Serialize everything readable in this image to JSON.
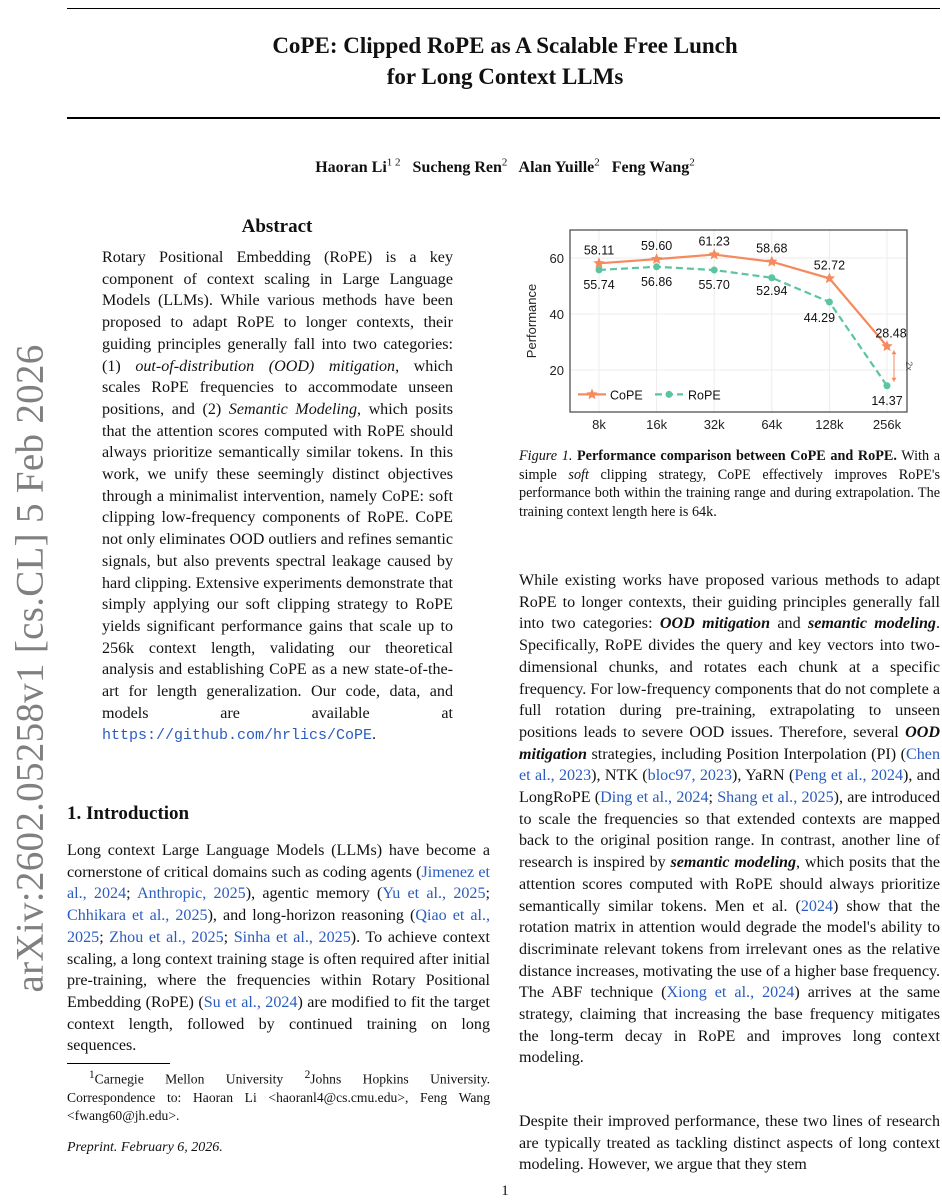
{
  "arxiv_id": "arXiv:2602.05258v1  [cs.CL]  5 Feb 2026",
  "title_line1": "CoPE: Clipped RoPE as A Scalable Free Lunch",
  "title_line2": "for Long Context LLMs",
  "authors": [
    {
      "name": "Haoran Li",
      "aff": "1 2"
    },
    {
      "name": "Sucheng Ren",
      "aff": "2"
    },
    {
      "name": "Alan Yuille",
      "aff": "2"
    },
    {
      "name": "Feng Wang",
      "aff": "2"
    }
  ],
  "abstract_heading": "Abstract",
  "abstract": [
    {
      "t": "Rotary Positional Embedding (RoPE) is a key component of context scaling in Large Language Models (LLMs).  While various methods have been proposed to adapt RoPE to longer contexts, their guiding principles generally fall into two categories: (1) ",
      "s": ""
    },
    {
      "t": "out-of-distribution (OOD) mitigation",
      "s": "em"
    },
    {
      "t": ", which scales RoPE frequencies to accommodate unseen positions, and (2) ",
      "s": ""
    },
    {
      "t": "Semantic Modeling",
      "s": "em"
    },
    {
      "t": ", which posits that the attention scores computed with RoPE should always prioritize semantically similar tokens. In this work, we unify these seemingly distinct objectives through a minimalist intervention, namely CoPE: soft clipping low-frequency components of RoPE. CoPE not only eliminates OOD outliers and refines semantic signals, but also prevents spectral leakage caused by hard clipping. Extensive experiments demonstrate that simply applying our soft clipping strategy to RoPE yields significant performance gains that scale up to 256k context length, validating our theoretical analysis and establishing CoPE as a new state-of-the-art for length generalization. Our code, data, and models are available at ",
      "s": ""
    },
    {
      "t": "https://github.com/hrlics/CoPE",
      "s": "code"
    },
    {
      "t": ".",
      "s": ""
    }
  ],
  "intro_heading": "1. Introduction",
  "intro": [
    {
      "t": "Long context Large Language Models (LLMs) have become a cornerstone of critical domains such as coding agents (",
      "s": ""
    },
    {
      "t": "Jimenez et al., 2024",
      "s": "cite"
    },
    {
      "t": "; ",
      "s": ""
    },
    {
      "t": "Anthropic, 2025",
      "s": "cite"
    },
    {
      "t": "), agentic memory (",
      "s": ""
    },
    {
      "t": "Yu et al., 2025",
      "s": "cite"
    },
    {
      "t": "; ",
      "s": ""
    },
    {
      "t": "Chhikara et al., 2025",
      "s": "cite"
    },
    {
      "t": "), and long-horizon reasoning (",
      "s": ""
    },
    {
      "t": "Qiao et al., 2025",
      "s": "cite"
    },
    {
      "t": "; ",
      "s": ""
    },
    {
      "t": "Zhou et al., 2025",
      "s": "cite"
    },
    {
      "t": "; ",
      "s": ""
    },
    {
      "t": "Sinha et al., 2025",
      "s": "cite"
    },
    {
      "t": "). To achieve context scaling, a long context training stage is often required after initial pre-training, where the frequencies within Rotary Positional Embedding (RoPE) (",
      "s": ""
    },
    {
      "t": "Su et al., 2024",
      "s": "cite"
    },
    {
      "t": ") are modified to fit the target context length, followed by continued training on long sequences.",
      "s": ""
    }
  ],
  "footnote": {
    "aff1": "1",
    "text1": "Carnegie Mellon University ",
    "aff2": "2",
    "text2": "Johns Hopkins University. Correspondence to: Haoran Li <haoranl4@cs.cmu.edu>, Feng Wang <fwang60@jh.edu>."
  },
  "preprint": "Preprint. February 6, 2026.",
  "page_number": "1",
  "figure": {
    "caption_label": "Figure 1.",
    "caption_bold": "Performance comparison between CoPE and RoPE.",
    "caption_rest1": "With a simple ",
    "caption_em": "soft",
    "caption_rest2": " clipping strategy, CoPE effectively improves RoPE's performance both within the training range and during extrapolation. The training context length here is 64k."
  },
  "chart_data": {
    "type": "line",
    "categories": [
      "8k",
      "16k",
      "32k",
      "64k",
      "128k",
      "256k"
    ],
    "series": [
      {
        "name": "CoPE",
        "values": [
          58.11,
          59.6,
          61.23,
          58.68,
          52.72,
          28.48
        ],
        "color": "#f58a5e",
        "marker": "star",
        "dash": "solid"
      },
      {
        "name": "RoPE",
        "values": [
          55.74,
          56.86,
          55.7,
          52.94,
          44.29,
          14.37
        ],
        "color": "#5cc4a0",
        "marker": "circle",
        "dash": "dashed"
      }
    ],
    "data_labels": {
      "CoPE": [
        "58.11",
        "59.60",
        "61.23",
        "58.68",
        "52.72",
        "28.48"
      ],
      "RoPE": [
        "55.74",
        "56.86",
        "55.70",
        "52.94",
        "44.29",
        "14.37"
      ]
    },
    "ylabel": "Performance",
    "xlabel": "",
    "yticks": [
      20,
      40,
      60
    ],
    "ytick_labels": [
      "20",
      "40",
      "60"
    ],
    "ylim": [
      5,
      70
    ],
    "grid": true,
    "legend": "bottom-left",
    "annotation": "2x",
    "annotation_color": "#f58a5e"
  },
  "right_p1": [
    {
      "t": "While existing works have proposed various methods to adapt RoPE to longer contexts, their guiding principles generally fall into two categories: ",
      "s": ""
    },
    {
      "t": "OOD mitigation",
      "s": "bem"
    },
    {
      "t": " and ",
      "s": ""
    },
    {
      "t": "semantic modeling",
      "s": "bem"
    },
    {
      "t": ".  Specifically, RoPE divides the query and key vectors into two-dimensional chunks, and rotates each chunk at a specific frequency. For low-frequency components that do not complete a full rotation during pre-training, extrapolating to unseen positions leads to severe OOD issues. Therefore, several ",
      "s": ""
    },
    {
      "t": "OOD mitigation",
      "s": "bem"
    },
    {
      "t": " strategies, including Position Interpolation (PI) (",
      "s": ""
    },
    {
      "t": "Chen et al., 2023",
      "s": "cite"
    },
    {
      "t": "), NTK (",
      "s": ""
    },
    {
      "t": "bloc97, 2023",
      "s": "cite"
    },
    {
      "t": "), YaRN (",
      "s": ""
    },
    {
      "t": "Peng et al., 2024",
      "s": "cite"
    },
    {
      "t": "), and LongRoPE (",
      "s": ""
    },
    {
      "t": "Ding et al., 2024",
      "s": "cite"
    },
    {
      "t": "; ",
      "s": ""
    },
    {
      "t": "Shang et al., 2025",
      "s": "cite"
    },
    {
      "t": "), are introduced to scale the frequencies so that extended contexts are mapped back to the original position range. In contrast, another line of research is inspired by ",
      "s": ""
    },
    {
      "t": "semantic modeling",
      "s": "bem"
    },
    {
      "t": ", which posits that the attention scores computed with RoPE should always prioritize semantically similar tokens. Men et al. (",
      "s": ""
    },
    {
      "t": "2024",
      "s": "cite"
    },
    {
      "t": ") show that the rotation matrix in attention would degrade the model's ability to discriminate relevant tokens from irrelevant ones as the relative distance increases, motivating the use of a higher base frequency.  The ABF technique (",
      "s": ""
    },
    {
      "t": "Xiong et al., 2024",
      "s": "cite"
    },
    {
      "t": ") arrives at the same strategy, claiming that increasing the base frequency mitigates the long-term decay in RoPE and improves long context modeling.",
      "s": ""
    }
  ],
  "right_p2": [
    {
      "t": "Despite their improved performance, these two lines of research are typically treated as tackling distinct aspects of long context modeling. However, we argue that they stem",
      "s": ""
    }
  ]
}
